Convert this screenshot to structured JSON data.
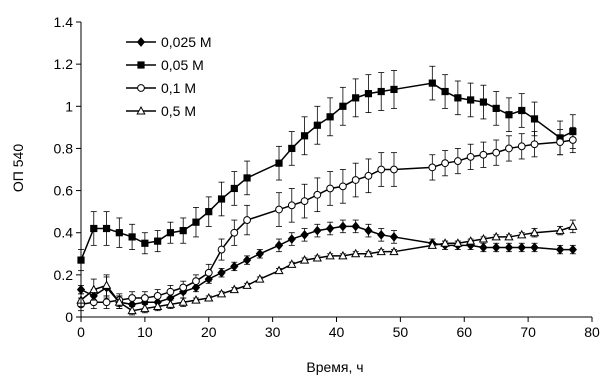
{
  "chart_data": {
    "type": "line",
    "title": "",
    "xlabel": "Время, ч",
    "ylabel": "ОП 540",
    "xlim": [
      0,
      80
    ],
    "ylim": [
      0,
      1.4
    ],
    "x_ticks": [
      "0",
      "10",
      "20",
      "30",
      "40",
      "50",
      "60",
      "70",
      "80"
    ],
    "y_ticks": [
      "0",
      "0.2",
      "0.4",
      "0.6",
      "0.8",
      "1",
      "1.2",
      "1.4"
    ],
    "grid": false,
    "legend_position": "top-left",
    "series": [
      {
        "name": "0,025 М",
        "marker": "diamond",
        "color": "#000000",
        "points": [
          [
            0,
            0.13
          ],
          [
            2,
            0.1
          ],
          [
            4,
            0.14
          ],
          [
            6,
            0.07
          ],
          [
            8,
            0.06
          ],
          [
            10,
            0.07
          ],
          [
            12,
            0.07
          ],
          [
            14,
            0.09
          ],
          [
            16,
            0.12
          ],
          [
            18,
            0.14
          ],
          [
            20,
            0.18
          ],
          [
            22,
            0.21
          ],
          [
            24,
            0.24
          ],
          [
            26,
            0.27
          ],
          [
            28,
            0.3
          ],
          [
            31,
            0.34
          ],
          [
            33,
            0.37
          ],
          [
            35,
            0.39
          ],
          [
            37,
            0.41
          ],
          [
            39,
            0.42
          ],
          [
            41,
            0.43
          ],
          [
            43,
            0.43
          ],
          [
            45,
            0.41
          ],
          [
            47,
            0.39
          ],
          [
            49,
            0.38
          ],
          [
            55,
            0.35
          ],
          [
            57,
            0.34
          ],
          [
            59,
            0.34
          ],
          [
            61,
            0.34
          ],
          [
            63,
            0.33
          ],
          [
            65,
            0.33
          ],
          [
            67,
            0.33
          ],
          [
            69,
            0.33
          ],
          [
            71,
            0.33
          ],
          [
            75,
            0.32
          ],
          [
            77,
            0.32
          ]
        ],
        "errors": [
          0.02,
          0.03,
          0.05,
          0.03,
          0.03,
          0.03,
          0.03,
          0.03,
          0.03,
          0.02,
          0.02,
          0.02,
          0.02,
          0.02,
          0.02,
          0.03,
          0.03,
          0.03,
          0.03,
          0.03,
          0.03,
          0.03,
          0.03,
          0.03,
          0.03,
          0.02,
          0.02,
          0.02,
          0.02,
          0.02,
          0.02,
          0.02,
          0.02,
          0.02,
          0.02,
          0.02
        ]
      },
      {
        "name": "0,05 М",
        "marker": "square",
        "color": "#000000",
        "points": [
          [
            0,
            0.27
          ],
          [
            2,
            0.42
          ],
          [
            4,
            0.42
          ],
          [
            6,
            0.4
          ],
          [
            8,
            0.38
          ],
          [
            10,
            0.35
          ],
          [
            12,
            0.36
          ],
          [
            14,
            0.4
          ],
          [
            16,
            0.41
          ],
          [
            18,
            0.45
          ],
          [
            20,
            0.5
          ],
          [
            22,
            0.56
          ],
          [
            24,
            0.61
          ],
          [
            26,
            0.66
          ],
          [
            31,
            0.73
          ],
          [
            33,
            0.8
          ],
          [
            35,
            0.86
          ],
          [
            37,
            0.91
          ],
          [
            39,
            0.95
          ],
          [
            41,
            1.0
          ],
          [
            43,
            1.04
          ],
          [
            45,
            1.06
          ],
          [
            47,
            1.07
          ],
          [
            49,
            1.08
          ],
          [
            55,
            1.11
          ],
          [
            57,
            1.07
          ],
          [
            59,
            1.04
          ],
          [
            61,
            1.03
          ],
          [
            63,
            1.02
          ],
          [
            65,
            0.99
          ],
          [
            67,
            0.96
          ],
          [
            69,
            0.98
          ],
          [
            71,
            0.94
          ],
          [
            75,
            0.85
          ],
          [
            77,
            0.88
          ]
        ],
        "errors": [
          0.05,
          0.08,
          0.08,
          0.07,
          0.06,
          0.05,
          0.05,
          0.05,
          0.06,
          0.07,
          0.07,
          0.08,
          0.08,
          0.08,
          0.08,
          0.08,
          0.09,
          0.09,
          0.09,
          0.09,
          0.09,
          0.09,
          0.09,
          0.09,
          0.08,
          0.08,
          0.08,
          0.08,
          0.08,
          0.08,
          0.08,
          0.08,
          0.08,
          0.08,
          0.08
        ]
      },
      {
        "name": "0,1 М",
        "marker": "circle",
        "color": "#000000",
        "points": [
          [
            0,
            0.06
          ],
          [
            2,
            0.07
          ],
          [
            4,
            0.07
          ],
          [
            6,
            0.08
          ],
          [
            8,
            0.09
          ],
          [
            10,
            0.09
          ],
          [
            12,
            0.1
          ],
          [
            14,
            0.12
          ],
          [
            16,
            0.14
          ],
          [
            18,
            0.17
          ],
          [
            20,
            0.21
          ],
          [
            22,
            0.32
          ],
          [
            24,
            0.4
          ],
          [
            26,
            0.46
          ],
          [
            31,
            0.51
          ],
          [
            33,
            0.53
          ],
          [
            35,
            0.55
          ],
          [
            37,
            0.58
          ],
          [
            39,
            0.61
          ],
          [
            41,
            0.62
          ],
          [
            43,
            0.65
          ],
          [
            45,
            0.67
          ],
          [
            47,
            0.7
          ],
          [
            49,
            0.7
          ],
          [
            55,
            0.71
          ],
          [
            57,
            0.73
          ],
          [
            59,
            0.74
          ],
          [
            61,
            0.76
          ],
          [
            63,
            0.77
          ],
          [
            65,
            0.78
          ],
          [
            67,
            0.8
          ],
          [
            69,
            0.81
          ],
          [
            71,
            0.82
          ],
          [
            75,
            0.83
          ],
          [
            77,
            0.84
          ]
        ],
        "errors": [
          0.03,
          0.03,
          0.03,
          0.03,
          0.03,
          0.03,
          0.03,
          0.03,
          0.03,
          0.03,
          0.04,
          0.05,
          0.06,
          0.07,
          0.08,
          0.08,
          0.08,
          0.08,
          0.08,
          0.08,
          0.08,
          0.08,
          0.08,
          0.08,
          0.06,
          0.06,
          0.06,
          0.06,
          0.06,
          0.06,
          0.06,
          0.06,
          0.06,
          0.06,
          0.06
        ]
      },
      {
        "name": "0,5 М",
        "marker": "triangle",
        "color": "#000000",
        "points": [
          [
            0,
            0.08
          ],
          [
            2,
            0.13
          ],
          [
            4,
            0.15
          ],
          [
            6,
            0.07
          ],
          [
            8,
            0.03
          ],
          [
            10,
            0.04
          ],
          [
            12,
            0.05
          ],
          [
            14,
            0.06
          ],
          [
            16,
            0.07
          ],
          [
            18,
            0.08
          ],
          [
            20,
            0.09
          ],
          [
            22,
            0.11
          ],
          [
            24,
            0.13
          ],
          [
            26,
            0.15
          ],
          [
            28,
            0.18
          ],
          [
            31,
            0.22
          ],
          [
            33,
            0.25
          ],
          [
            35,
            0.27
          ],
          [
            37,
            0.28
          ],
          [
            39,
            0.29
          ],
          [
            41,
            0.29
          ],
          [
            43,
            0.3
          ],
          [
            45,
            0.3
          ],
          [
            47,
            0.31
          ],
          [
            49,
            0.31
          ],
          [
            55,
            0.34
          ],
          [
            57,
            0.35
          ],
          [
            59,
            0.35
          ],
          [
            61,
            0.36
          ],
          [
            63,
            0.37
          ],
          [
            65,
            0.38
          ],
          [
            67,
            0.38
          ],
          [
            69,
            0.39
          ],
          [
            71,
            0.4
          ],
          [
            75,
            0.41
          ],
          [
            77,
            0.43
          ]
        ],
        "errors": [
          0.03,
          0.05,
          0.05,
          0.03,
          0.02,
          0.02,
          0.02,
          0.02,
          0.02,
          0.01,
          0.01,
          0.01,
          0.01,
          0.01,
          0.01,
          0.01,
          0.01,
          0.01,
          0.01,
          0.01,
          0.01,
          0.01,
          0.01,
          0.01,
          0.01,
          0.01,
          0.01,
          0.01,
          0.01,
          0.01,
          0.01,
          0.01,
          0.01,
          0.02,
          0.02,
          0.03
        ]
      }
    ]
  }
}
